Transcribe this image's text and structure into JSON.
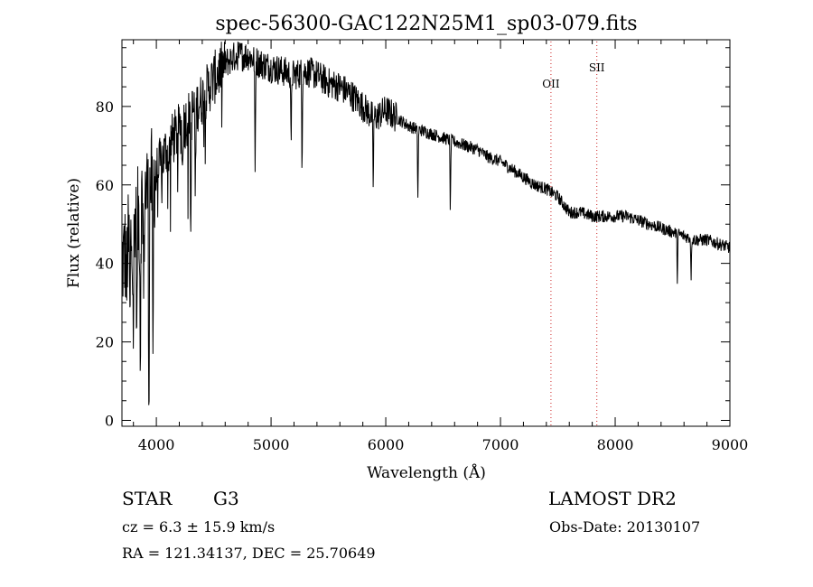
{
  "chart_data": {
    "type": "line",
    "title": "spec-56300-GAC122N25M1_sp03-079.fits",
    "xlabel": "Wavelength (Å)",
    "ylabel": "Flux (relative)",
    "xlim": [
      3700,
      9000
    ],
    "ylim": [
      -1.5,
      97
    ],
    "x_ticks": [
      4000,
      5000,
      6000,
      7000,
      8000,
      9000
    ],
    "x_tick_labels": [
      "4000",
      "5000",
      "6000",
      "7000",
      "8000",
      "9000"
    ],
    "y_ticks": [
      0,
      20,
      40,
      60,
      80
    ],
    "y_tick_labels": [
      "0",
      "20",
      "40",
      "60",
      "80"
    ],
    "grid": false,
    "line_color": "#000000",
    "marker_color": "#cc2222",
    "continuum": [
      [
        3700,
        40
      ],
      [
        3800,
        48
      ],
      [
        3900,
        58
      ],
      [
        4000,
        63
      ],
      [
        4100,
        70
      ],
      [
        4200,
        74
      ],
      [
        4300,
        78
      ],
      [
        4400,
        82
      ],
      [
        4500,
        87
      ],
      [
        4600,
        91
      ],
      [
        4700,
        93
      ],
      [
        4800,
        93
      ],
      [
        4900,
        91
      ],
      [
        5000,
        90
      ],
      [
        5100,
        89
      ],
      [
        5200,
        88
      ],
      [
        5300,
        89
      ],
      [
        5400,
        88
      ],
      [
        5500,
        86
      ],
      [
        5600,
        85
      ],
      [
        5700,
        83
      ],
      [
        5800,
        80
      ],
      [
        5900,
        77
      ],
      [
        6000,
        79
      ],
      [
        6100,
        77
      ],
      [
        6200,
        75
      ],
      [
        6300,
        74
      ],
      [
        6400,
        73
      ],
      [
        6500,
        72
      ],
      [
        6600,
        71
      ],
      [
        6700,
        70
      ],
      [
        6800,
        69
      ],
      [
        6900,
        67
      ],
      [
        7000,
        66
      ],
      [
        7100,
        64
      ],
      [
        7200,
        62
      ],
      [
        7300,
        60
      ],
      [
        7400,
        59
      ],
      [
        7500,
        57
      ],
      [
        7600,
        53
      ],
      [
        7700,
        53
      ],
      [
        7800,
        52
      ],
      [
        7900,
        52
      ],
      [
        8000,
        52
      ],
      [
        8100,
        52
      ],
      [
        8200,
        51
      ],
      [
        8300,
        50
      ],
      [
        8400,
        49
      ],
      [
        8500,
        48
      ],
      [
        8600,
        47
      ],
      [
        8700,
        46
      ],
      [
        8800,
        46
      ],
      [
        8900,
        45
      ],
      [
        9000,
        44
      ]
    ],
    "absorption_lines": [
      {
        "x": 3740,
        "y": 30
      },
      {
        "x": 3770,
        "y": 22
      },
      {
        "x": 3800,
        "y": 25
      },
      {
        "x": 3830,
        "y": 18
      },
      {
        "x": 3860,
        "y": 16
      },
      {
        "x": 3890,
        "y": 30
      },
      {
        "x": 3935,
        "y": 4
      },
      {
        "x": 3970,
        "y": 8
      },
      {
        "x": 4102,
        "y": 60
      },
      {
        "x": 4227,
        "y": 62
      },
      {
        "x": 4300,
        "y": 46
      },
      {
        "x": 4340,
        "y": 55
      },
      {
        "x": 4861,
        "y": 63
      },
      {
        "x": 5175,
        "y": 68
      },
      {
        "x": 5270,
        "y": 67
      },
      {
        "x": 5890,
        "y": 60
      },
      {
        "x": 6280,
        "y": 57
      },
      {
        "x": 6563,
        "y": 54
      },
      {
        "x": 8542,
        "y": 36
      },
      {
        "x": 8662,
        "y": 37
      }
    ],
    "line_markers": [
      {
        "name": "OII",
        "x": 7440
      },
      {
        "name": "SII",
        "x": 7840
      }
    ]
  },
  "info": {
    "object_class": "STAR",
    "subclass": "G3",
    "survey": "LAMOST DR2",
    "cz": "cz = 6.3 ± 15.9 km/s",
    "obs_date": "Obs-Date: 20130107",
    "radec": "RA = 121.34137, DEC =  25.70649"
  }
}
